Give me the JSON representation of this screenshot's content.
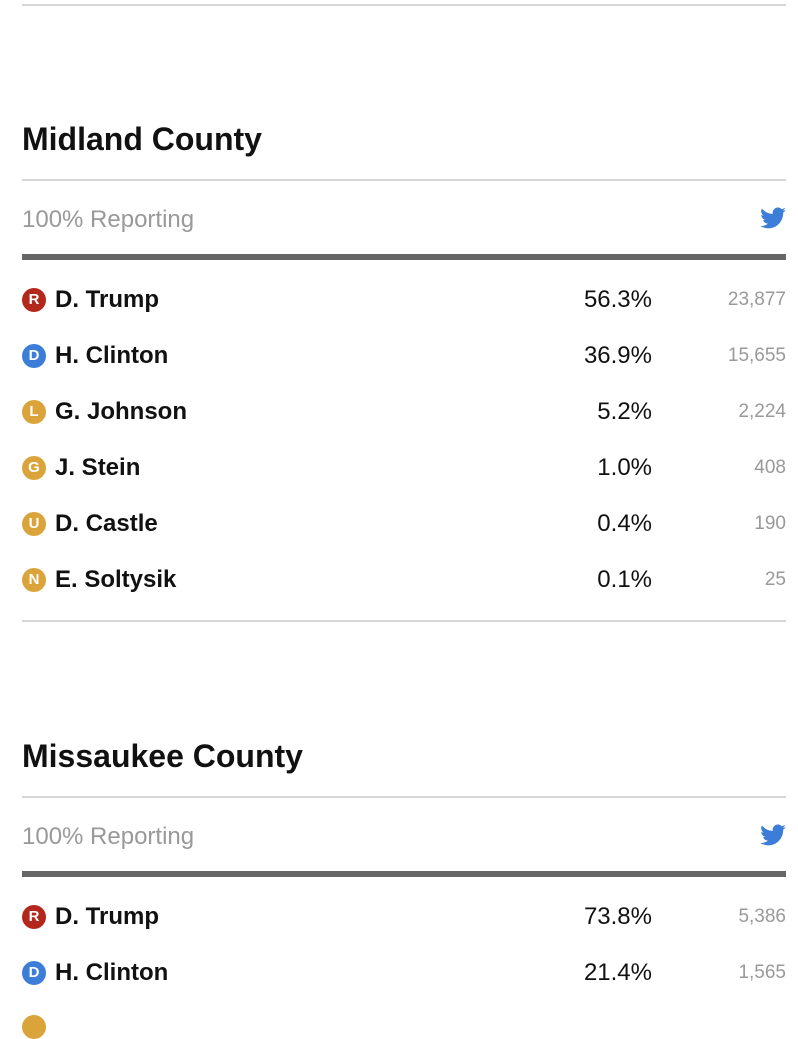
{
  "counties": [
    {
      "name": "Midland County",
      "reporting": "100% Reporting",
      "candidates": [
        {
          "party": "R",
          "name": "D. Trump",
          "pct": "56.3%",
          "votes": "23,877"
        },
        {
          "party": "D",
          "name": "H. Clinton",
          "pct": "36.9%",
          "votes": "15,655"
        },
        {
          "party": "L",
          "name": "G. Johnson",
          "pct": "5.2%",
          "votes": "2,224"
        },
        {
          "party": "G",
          "name": "J. Stein",
          "pct": "1.0%",
          "votes": "408"
        },
        {
          "party": "U",
          "name": "D. Castle",
          "pct": "0.4%",
          "votes": "190"
        },
        {
          "party": "N",
          "name": "E. Soltysik",
          "pct": "0.1%",
          "votes": "25"
        }
      ]
    },
    {
      "name": "Missaukee County",
      "reporting": "100% Reporting",
      "candidates": [
        {
          "party": "R",
          "name": "D. Trump",
          "pct": "73.8%",
          "votes": "5,386"
        },
        {
          "party": "D",
          "name": "H. Clinton",
          "pct": "21.4%",
          "votes": "1,565"
        }
      ]
    }
  ]
}
